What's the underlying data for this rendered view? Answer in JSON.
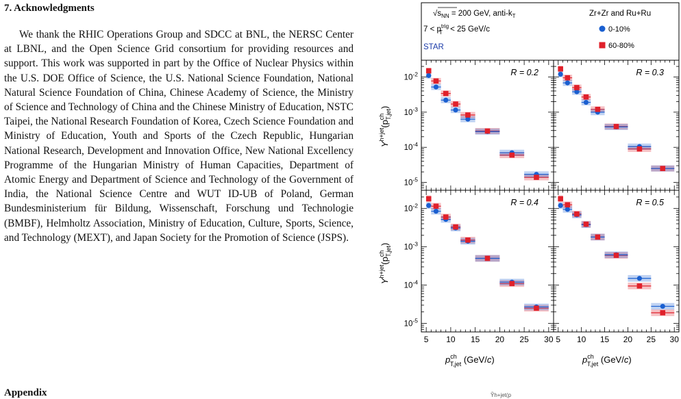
{
  "section": {
    "heading": "7. Acknowledgments"
  },
  "acknowledgments": {
    "text": "We thank the RHIC Operations Group and SDCC at BNL, the NERSC Center at LBNL, and the Open Science Grid consortium for providing resources and support. This work was supported in part by the Office of Nuclear Physics within the U.S. DOE Office of Science, the U.S. National Science Foundation, National Natural Science Foundation of China, Chinese Academy of Science, the Ministry of Science and Technology of China and the Chinese Ministry of Education, NSTC Taipei, the National Research Foundation of Korea, Czech Science Foundation and Ministry of Education, Youth and Sports of the Czech Republic, Hungarian National Research, Development and Innovation Office, New National Excellency Programme of the Hungarian Ministry of Human Capacities, Department of Atomic Energy and Department of Science and Technology of the Government of India, the National Science Centre and WUT ID-UB of Poland, German Bundesministerium für Bildung, Wissenschaft, Forschung und Technologie (BMBF), Helmholtz Association, Ministry of Education, Culture, Sports, Science, and Technology (MEXT), and Japan Society for the Promotion of Science (JSPS)."
  },
  "appendix": {
    "heading": "Appendix"
  },
  "footer_fragment": "Ỹh+jet(p",
  "figure": {
    "header": {
      "line1_sqrt": "s",
      "line1_sub": "NN",
      "line1_rest": " = 200 GeV, anti-k",
      "line1_tsub": "T",
      "line2_pre": "7 < p",
      "line2_sup": "trig",
      "line2_sub": "T",
      "line2_post": " < 25 GeV/c",
      "experiment": "STAR",
      "system": "Zr+Zr and Ru+Ru",
      "legend": [
        {
          "label": "0-10%",
          "marker": "circle",
          "color": "#1a5fd0"
        },
        {
          "label": "60-80%",
          "marker": "square",
          "color": "#e0202a"
        }
      ]
    },
    "y_label_main": "Y",
    "y_label_sup": "h+jet",
    "y_label_arg": "(p",
    "y_label_arg_sup": "ch",
    "y_label_arg_sub": "T,jet",
    "y_label_close": ")",
    "x_label_main": "p",
    "x_label_sup": "ch",
    "x_label_sub": "T,jet",
    "x_label_unit": " (GeV/",
    "x_label_c": "c",
    "x_label_close": ")"
  },
  "chart_data": [
    {
      "type": "scatter",
      "label": "R = 0.2",
      "xlim": [
        4,
        31
      ],
      "ylim": [
        6e-06,
        0.03
      ],
      "yscale": "log",
      "x": [
        5.5,
        7,
        9,
        11,
        13.5,
        17.5,
        22.5,
        27.5
      ],
      "xerr": [
        0.5,
        1,
        1,
        1,
        1.5,
        2.5,
        2.5,
        2.5
      ],
      "series": [
        {
          "name": "0-10%",
          "values": [
            0.011,
            0.0052,
            0.0022,
            0.00115,
            0.00063,
            0.00028,
            7e-05,
            1.7e-05
          ]
        },
        {
          "name": "60-80%",
          "values": [
            0.015,
            0.0077,
            0.0034,
            0.0017,
            0.00083,
            0.00029,
            6e-05,
            1.4e-05
          ]
        }
      ]
    },
    {
      "type": "scatter",
      "label": "R = 0.3",
      "xlim": [
        4,
        31
      ],
      "ylim": [
        6e-06,
        0.03
      ],
      "yscale": "log",
      "x": [
        5.5,
        7,
        9,
        11,
        13.5,
        17.5,
        22.5,
        27.5
      ],
      "xerr": [
        0.5,
        1,
        1,
        1,
        1.5,
        2.5,
        2.5,
        2.5
      ],
      "series": [
        {
          "name": "0-10%",
          "values": [
            0.012,
            0.0068,
            0.0038,
            0.0019,
            0.001,
            0.00038,
            0.000105,
            2.5e-05
          ]
        },
        {
          "name": "60-80%",
          "values": [
            0.017,
            0.0095,
            0.005,
            0.0027,
            0.0012,
            0.00039,
            9e-05,
            2.5e-05
          ]
        }
      ]
    },
    {
      "type": "scatter",
      "label": "R = 0.4",
      "xlim": [
        4,
        31
      ],
      "ylim": [
        6e-06,
        0.03
      ],
      "yscale": "log",
      "x": [
        5.5,
        7,
        9,
        11,
        13.5,
        17.5,
        22.5,
        27.5
      ],
      "xerr": [
        0.5,
        1,
        1,
        1,
        1.5,
        2.5,
        2.5,
        2.5
      ],
      "series": [
        {
          "name": "0-10%",
          "values": [
            0.012,
            0.0085,
            0.0052,
            0.0031,
            0.0014,
            0.0005,
            0.00012,
            2.7e-05
          ]
        },
        {
          "name": "60-80%",
          "values": [
            0.018,
            0.0115,
            0.006,
            0.0033,
            0.0015,
            0.0005,
            0.00011,
            2.5e-05
          ]
        }
      ]
    },
    {
      "type": "scatter",
      "label": "R = 0.5",
      "xlim": [
        4,
        31
      ],
      "ylim": [
        6e-06,
        0.03
      ],
      "yscale": "log",
      "x": [
        5.5,
        7,
        9,
        11,
        13.5,
        17.5,
        22.5,
        27.5
      ],
      "xerr": [
        0.5,
        1,
        1,
        1,
        1.5,
        2.5,
        2.5,
        2.5
      ],
      "series": [
        {
          "name": "0-10%",
          "values": [
            0.012,
            0.0095,
            0.0068,
            0.0038,
            0.0018,
            0.00062,
            0.00015,
            2.8e-05
          ]
        },
        {
          "name": "60-80%",
          "values": [
            0.018,
            0.0125,
            0.0072,
            0.0039,
            0.0018,
            0.0006,
            9.5e-05,
            1.9e-05
          ]
        }
      ]
    }
  ],
  "axis": {
    "y_ticks": [
      {
        "value": 1e-05,
        "exp": "-5"
      },
      {
        "value": 0.0001,
        "exp": "-4"
      },
      {
        "value": 0.001,
        "exp": "-3"
      },
      {
        "value": 0.01,
        "exp": "-2"
      }
    ],
    "y_tick_base": "10",
    "x_ticks": [
      5,
      10,
      15,
      20,
      25,
      30
    ]
  }
}
